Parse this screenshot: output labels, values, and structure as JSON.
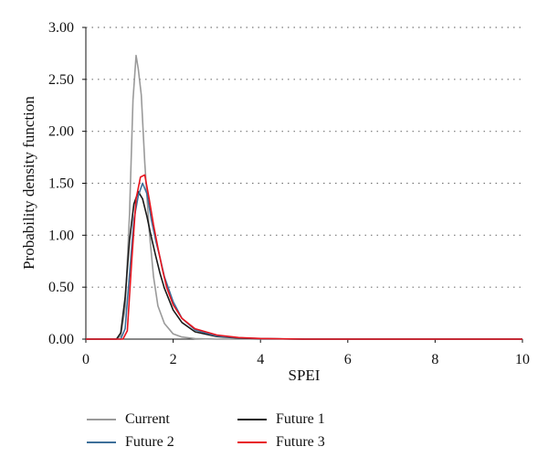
{
  "chart_data": {
    "type": "line",
    "xlabel": "SPEI",
    "ylabel": "Probability density function",
    "xlim": [
      0,
      10
    ],
    "ylim": [
      0,
      3
    ],
    "x_ticks": [
      0,
      2,
      4,
      6,
      8,
      10
    ],
    "x_tick_labels": [
      "0",
      "2",
      "4",
      "6",
      "8",
      "10"
    ],
    "y_ticks": [
      0,
      0.5,
      1,
      1.5,
      2,
      2.5,
      3
    ],
    "y_tick_labels": [
      "0.00",
      "0.50",
      "1.00",
      "1.50",
      "2.00",
      "2.50",
      "3.00"
    ],
    "grid": "horizontal dotted",
    "legend_position": "bottom",
    "series": [
      {
        "name": "Current",
        "color": "#9a9a9a",
        "x": [
          0,
          0.7,
          0.8,
          0.9,
          1.0,
          1.08,
          1.15,
          1.2,
          1.27,
          1.35,
          1.45,
          1.55,
          1.65,
          1.8,
          2.0,
          2.2,
          2.5,
          3.0,
          10.1
        ],
        "y": [
          0,
          0,
          0.03,
          0.3,
          1.2,
          2.3,
          2.73,
          2.6,
          2.35,
          1.7,
          1.05,
          0.6,
          0.32,
          0.15,
          0.05,
          0.02,
          0.005,
          0,
          0
        ]
      },
      {
        "name": "Future 1",
        "color": "#1a1a1a",
        "x": [
          0,
          0.7,
          0.8,
          0.9,
          1.0,
          1.1,
          1.2,
          1.3,
          1.4,
          1.5,
          1.6,
          1.7,
          1.8,
          2.0,
          2.2,
          2.5,
          3.0,
          3.5,
          4.0,
          5.0,
          10.1
        ],
        "y": [
          0,
          0,
          0.06,
          0.4,
          0.95,
          1.3,
          1.42,
          1.35,
          1.18,
          0.98,
          0.8,
          0.63,
          0.49,
          0.28,
          0.16,
          0.07,
          0.025,
          0.01,
          0.004,
          0,
          0
        ]
      },
      {
        "name": "Future 2",
        "color": "#3d6f9a",
        "x": [
          0,
          0.8,
          0.9,
          1.0,
          1.1,
          1.2,
          1.3,
          1.4,
          1.5,
          1.6,
          1.7,
          1.8,
          2.0,
          2.2,
          2.5,
          3.0,
          3.5,
          4.0,
          5.0,
          10.1
        ],
        "y": [
          0,
          0,
          0.1,
          0.62,
          1.15,
          1.38,
          1.5,
          1.4,
          1.15,
          0.95,
          0.78,
          0.6,
          0.36,
          0.2,
          0.09,
          0.03,
          0.012,
          0.005,
          0,
          0
        ]
      },
      {
        "name": "Future 3",
        "color": "#e8141d",
        "x": [
          0,
          0.85,
          0.95,
          1.05,
          1.15,
          1.25,
          1.35,
          1.45,
          1.55,
          1.65,
          1.75,
          1.85,
          2.0,
          2.2,
          2.5,
          3.0,
          3.5,
          4.0,
          5.0,
          10.1
        ],
        "y": [
          0,
          0,
          0.08,
          0.75,
          1.35,
          1.56,
          1.58,
          1.35,
          1.1,
          0.88,
          0.68,
          0.5,
          0.33,
          0.2,
          0.1,
          0.04,
          0.015,
          0.006,
          0,
          0
        ]
      }
    ]
  },
  "legend": [
    {
      "label": "Current",
      "color": "#9a9a9a"
    },
    {
      "label": "Future 1",
      "color": "#1a1a1a"
    },
    {
      "label": "Future 2",
      "color": "#3d6f9a"
    },
    {
      "label": "Future 3",
      "color": "#e8141d"
    }
  ]
}
